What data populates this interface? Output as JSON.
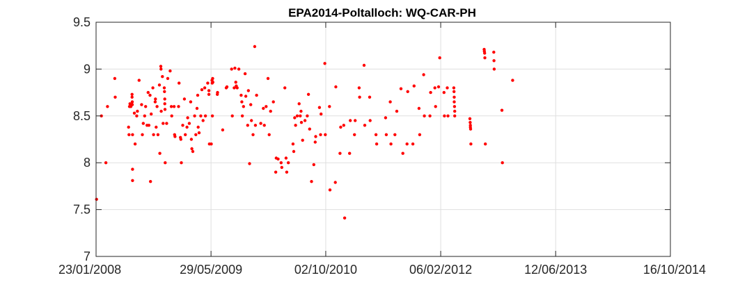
{
  "chart_data": {
    "type": "scatter",
    "title": "EPA2014-Poltalloch: WQ-CAR-PH",
    "xlabel": "",
    "ylabel": "",
    "xlim": [
      "2008-01-23",
      "2014-10-16"
    ],
    "ylim": [
      7,
      9.5
    ],
    "grid": true,
    "marker_color": "#ff0000",
    "x_ticks": [
      "2008-01-23",
      "2009-05-29",
      "2010-10-02",
      "2012-02-06",
      "2013-06-12",
      "2014-10-16"
    ],
    "x_tick_labels": [
      "23/01/2008",
      "29/05/2009",
      "02/10/2010",
      "06/02/2012",
      "12/06/2013",
      "16/10/2014"
    ],
    "y_ticks": [
      7,
      7.5,
      8,
      8.5,
      9,
      9.5
    ],
    "y_tick_labels": [
      "7",
      "7.5",
      "8",
      "8.5",
      "9",
      "9.5"
    ],
    "points": [
      [
        "2008-01-25",
        7.61
      ],
      [
        "2008-02-15",
        8.5
      ],
      [
        "2008-03-05",
        8.0
      ],
      [
        "2008-03-12",
        8.6
      ],
      [
        "2008-04-12",
        8.9
      ],
      [
        "2008-04-14",
        8.7
      ],
      [
        "2008-06-10",
        8.38
      ],
      [
        "2008-06-12",
        8.3
      ],
      [
        "2008-06-14",
        8.6
      ],
      [
        "2008-06-16",
        8.63
      ],
      [
        "2008-06-20",
        8.6
      ],
      [
        "2008-06-25",
        8.73
      ],
      [
        "2008-06-25",
        8.7
      ],
      [
        "2008-06-26",
        8.65
      ],
      [
        "2008-06-26",
        8.62
      ],
      [
        "2008-06-27",
        8.3
      ],
      [
        "2008-06-27",
        7.93
      ],
      [
        "2008-06-27",
        7.81
      ],
      [
        "2008-07-05",
        8.53
      ],
      [
        "2008-07-08",
        8.2
      ],
      [
        "2008-07-15",
        8.5
      ],
      [
        "2008-07-18",
        8.55
      ],
      [
        "2008-07-25",
        8.88
      ],
      [
        "2008-08-05",
        8.62
      ],
      [
        "2008-08-08",
        8.3
      ],
      [
        "2008-08-12",
        8.42
      ],
      [
        "2008-08-18",
        8.5
      ],
      [
        "2008-08-22",
        8.6
      ],
      [
        "2008-08-28",
        8.4
      ],
      [
        "2008-09-02",
        8.75
      ],
      [
        "2008-09-05",
        8.4
      ],
      [
        "2008-09-10",
        8.72
      ],
      [
        "2008-09-12",
        7.8
      ],
      [
        "2008-09-15",
        8.52
      ],
      [
        "2008-09-22",
        8.8
      ],
      [
        "2008-09-25",
        8.3
      ],
      [
        "2008-10-02",
        8.65
      ],
      [
        "2008-10-03",
        8.68
      ],
      [
        "2008-10-06",
        8.38
      ],
      [
        "2008-10-10",
        8.6
      ],
      [
        "2008-10-14",
        8.3
      ],
      [
        "2008-10-20",
        8.83
      ],
      [
        "2008-10-22",
        8.1
      ],
      [
        "2008-10-26",
        9.03
      ],
      [
        "2008-10-27",
        9.0
      ],
      [
        "2008-10-28",
        8.55
      ],
      [
        "2008-11-02",
        8.92
      ],
      [
        "2008-11-05",
        8.42
      ],
      [
        "2008-11-10",
        8.8
      ],
      [
        "2008-11-11",
        8.76
      ],
      [
        "2008-11-12",
        8.68
      ],
      [
        "2008-11-12",
        8.63
      ],
      [
        "2008-11-13",
        8.57
      ],
      [
        "2008-11-14",
        8.0
      ],
      [
        "2008-11-20",
        8.42
      ],
      [
        "2008-11-25",
        8.9
      ],
      [
        "2008-12-05",
        8.98
      ],
      [
        "2008-12-10",
        8.6
      ],
      [
        "2008-12-12",
        8.5
      ],
      [
        "2008-12-22",
        8.6
      ],
      [
        "2008-12-24",
        8.3
      ],
      [
        "2008-12-26",
        8.28
      ],
      [
        "2009-01-10",
        8.6
      ],
      [
        "2009-01-12",
        8.85
      ],
      [
        "2009-01-18",
        8.27
      ],
      [
        "2009-01-20",
        8.25
      ],
      [
        "2009-01-22",
        8.0
      ],
      [
        "2009-01-28",
        8.4
      ],
      [
        "2009-02-04",
        8.68
      ],
      [
        "2009-02-08",
        8.3
      ],
      [
        "2009-02-15",
        8.38
      ],
      [
        "2009-02-18",
        8.48
      ],
      [
        "2009-02-25",
        8.42
      ],
      [
        "2009-03-03",
        8.65
      ],
      [
        "2009-03-06",
        8.25
      ],
      [
        "2009-03-08",
        8.15
      ],
      [
        "2009-03-12",
        8.12
      ],
      [
        "2009-03-20",
        8.5
      ],
      [
        "2009-03-25",
        8.3
      ],
      [
        "2009-03-30",
        8.58
      ],
      [
        "2009-04-02",
        8.72
      ],
      [
        "2009-04-04",
        8.38
      ],
      [
        "2009-04-08",
        8.32
      ],
      [
        "2009-04-15",
        8.5
      ],
      [
        "2009-04-20",
        8.78
      ],
      [
        "2009-04-25",
        8.45
      ],
      [
        "2009-05-02",
        8.8
      ],
      [
        "2009-05-05",
        8.5
      ],
      [
        "2009-05-15",
        8.85
      ],
      [
        "2009-05-20",
        8.77
      ],
      [
        "2009-05-20",
        8.73
      ],
      [
        "2009-05-22",
        8.2
      ],
      [
        "2009-05-30",
        8.2
      ],
      [
        "2009-06-02",
        8.88
      ],
      [
        "2009-06-03",
        8.85
      ],
      [
        "2009-06-04",
        8.5
      ],
      [
        "2009-06-05",
        8.9
      ],
      [
        "2009-06-06",
        8.86
      ],
      [
        "2009-06-25",
        8.73
      ],
      [
        "2009-06-26",
        8.75
      ],
      [
        "2009-07-18",
        8.35
      ],
      [
        "2009-08-02",
        8.8
      ],
      [
        "2009-08-05",
        8.81
      ],
      [
        "2009-08-25",
        9.0
      ],
      [
        "2009-08-28",
        8.5
      ],
      [
        "2009-09-05",
        8.8
      ],
      [
        "2009-09-08",
        9.01
      ],
      [
        "2009-09-12",
        8.86
      ],
      [
        "2009-09-14",
        8.82
      ],
      [
        "2009-09-18",
        8.8
      ],
      [
        "2009-09-25",
        9.0
      ],
      [
        "2009-10-05",
        8.72
      ],
      [
        "2009-10-08",
        8.65
      ],
      [
        "2009-10-10",
        8.5
      ],
      [
        "2009-10-15",
        8.6
      ],
      [
        "2009-10-22",
        8.95
      ],
      [
        "2009-10-25",
        8.71
      ],
      [
        "2009-11-02",
        8.4
      ],
      [
        "2009-11-05",
        8.77
      ],
      [
        "2009-11-10",
        7.99
      ],
      [
        "2009-11-15",
        8.62
      ],
      [
        "2009-11-18",
        8.45
      ],
      [
        "2009-11-25",
        8.3
      ],
      [
        "2009-12-02",
        9.24
      ],
      [
        "2009-12-05",
        8.4
      ],
      [
        "2009-12-10",
        8.72
      ],
      [
        "2009-12-28",
        8.42
      ],
      [
        "2010-01-08",
        8.58
      ],
      [
        "2010-01-12",
        8.4
      ],
      [
        "2010-01-20",
        8.6
      ],
      [
        "2010-01-28",
        8.9
      ],
      [
        "2010-02-02",
        8.3
      ],
      [
        "2010-02-08",
        8.55
      ],
      [
        "2010-02-20",
        8.65
      ],
      [
        "2010-03-02",
        7.9
      ],
      [
        "2010-03-04",
        8.05
      ],
      [
        "2010-03-12",
        8.04
      ],
      [
        "2010-03-25",
        8.0
      ],
      [
        "2010-03-28",
        7.95
      ],
      [
        "2010-04-10",
        8.8
      ],
      [
        "2010-04-15",
        8.05
      ],
      [
        "2010-04-18",
        7.9
      ],
      [
        "2010-04-25",
        8.0
      ],
      [
        "2010-05-15",
        8.2
      ],
      [
        "2010-05-18",
        8.12
      ],
      [
        "2010-05-22",
        8.48
      ],
      [
        "2010-05-26",
        8.4
      ],
      [
        "2010-06-02",
        8.5
      ],
      [
        "2010-06-10",
        8.63
      ],
      [
        "2010-06-15",
        8.5
      ],
      [
        "2010-06-18",
        8.55
      ],
      [
        "2010-06-20",
        8.43
      ],
      [
        "2010-06-25",
        8.24
      ],
      [
        "2010-07-05",
        8.45
      ],
      [
        "2010-07-15",
        8.5
      ],
      [
        "2010-07-20",
        8.73
      ],
      [
        "2010-07-25",
        8.36
      ],
      [
        "2010-08-02",
        7.8
      ],
      [
        "2010-08-12",
        7.98
      ],
      [
        "2010-08-18",
        8.22
      ],
      [
        "2010-08-20",
        8.28
      ],
      [
        "2010-09-05",
        8.59
      ],
      [
        "2010-09-10",
        8.3
      ],
      [
        "2010-09-12",
        8.52
      ],
      [
        "2010-09-28",
        9.06
      ],
      [
        "2010-09-30",
        8.3
      ],
      [
        "2010-10-18",
        8.6
      ],
      [
        "2010-10-20",
        7.71
      ],
      [
        "2010-11-12",
        7.79
      ],
      [
        "2010-11-14",
        8.81
      ],
      [
        "2010-12-02",
        8.1
      ],
      [
        "2010-12-05",
        8.38
      ],
      [
        "2010-12-18",
        8.4
      ],
      [
        "2010-12-22",
        7.41
      ],
      [
        "2011-01-12",
        8.1
      ],
      [
        "2011-01-15",
        8.45
      ],
      [
        "2011-02-02",
        8.3
      ],
      [
        "2011-02-05",
        8.45
      ],
      [
        "2011-02-22",
        8.8
      ],
      [
        "2011-02-24",
        8.7
      ],
      [
        "2011-03-15",
        9.04
      ],
      [
        "2011-03-18",
        8.4
      ],
      [
        "2011-04-08",
        8.7
      ],
      [
        "2011-04-10",
        8.45
      ],
      [
        "2011-05-05",
        8.3
      ],
      [
        "2011-05-08",
        8.2
      ],
      [
        "2011-06-15",
        8.48
      ],
      [
        "2011-06-18",
        8.3
      ],
      [
        "2011-07-05",
        8.65
      ],
      [
        "2011-07-08",
        8.2
      ],
      [
        "2011-07-25",
        8.3
      ],
      [
        "2011-08-02",
        8.55
      ],
      [
        "2011-08-20",
        8.79
      ],
      [
        "2011-08-28",
        8.1
      ],
      [
        "2011-09-15",
        8.2
      ],
      [
        "2011-09-18",
        8.76
      ],
      [
        "2011-10-10",
        8.2
      ],
      [
        "2011-10-15",
        8.82
      ],
      [
        "2011-11-05",
        8.58
      ],
      [
        "2011-11-08",
        8.3
      ],
      [
        "2011-11-25",
        8.94
      ],
      [
        "2011-11-28",
        8.5
      ],
      [
        "2011-12-22",
        8.5
      ],
      [
        "2011-12-25",
        8.75
      ],
      [
        "2012-01-12",
        8.8
      ],
      [
        "2012-01-15",
        8.6
      ],
      [
        "2012-01-28",
        8.81
      ],
      [
        "2012-02-02",
        9.12
      ],
      [
        "2012-02-20",
        8.75
      ],
      [
        "2012-02-22",
        8.5
      ],
      [
        "2012-03-05",
        8.8
      ],
      [
        "2012-03-08",
        8.5
      ],
      [
        "2012-04-02",
        8.8
      ],
      [
        "2012-04-03",
        8.76
      ],
      [
        "2012-04-04",
        8.7
      ],
      [
        "2012-04-04",
        8.65
      ],
      [
        "2012-04-05",
        8.6
      ],
      [
        "2012-04-06",
        8.55
      ],
      [
        "2012-04-06",
        8.5
      ],
      [
        "2012-06-10",
        8.47
      ],
      [
        "2012-06-11",
        8.43
      ],
      [
        "2012-06-12",
        8.4
      ],
      [
        "2012-06-12",
        8.38
      ],
      [
        "2012-06-13",
        8.36
      ],
      [
        "2012-06-14",
        8.2
      ],
      [
        "2012-08-10",
        9.21
      ],
      [
        "2012-08-11",
        9.19
      ],
      [
        "2012-08-12",
        9.17
      ],
      [
        "2012-08-13",
        9.12
      ],
      [
        "2012-08-15",
        8.2
      ],
      [
        "2012-09-20",
        9.18
      ],
      [
        "2012-09-21",
        9.09
      ],
      [
        "2012-09-22",
        9.0
      ],
      [
        "2012-10-25",
        8.56
      ],
      [
        "2012-10-27",
        8.0
      ],
      [
        "2012-12-10",
        8.88
      ]
    ]
  }
}
